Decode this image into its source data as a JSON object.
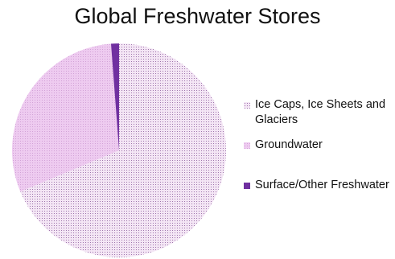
{
  "chart_data": {
    "type": "pie",
    "title": "Global Freshwater Stores",
    "legend_position": "right",
    "series": [
      {
        "name": "Global Freshwater Stores",
        "categories": [
          "Ice Caps, Ice Sheets and Glaciers",
          "Groundwater",
          "Surface/Other Freshwater"
        ],
        "values": [
          68.7,
          30.1,
          1.2
        ]
      }
    ],
    "slice_colors": [
      "#f4e6f5",
      "#eecbf0",
      "#7030a0"
    ],
    "slice_patterns": [
      "dotted",
      "dotted",
      "solid"
    ]
  }
}
